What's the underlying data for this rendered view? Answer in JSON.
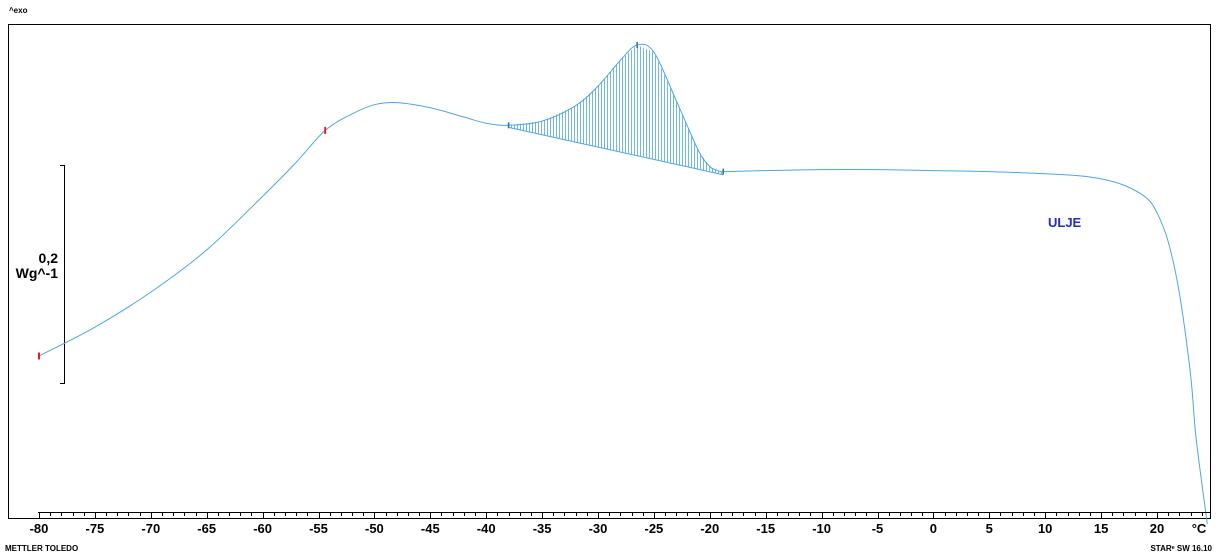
{
  "corner_label": "^exo",
  "footer_left": "METTLER TOLEDO",
  "footer_right": "STARᵉ SW 16.10",
  "colors": {
    "curve": "#4da6e8",
    "hatch": "#4da6e8",
    "label": "#1f2fbf",
    "marker": "#e02020"
  },
  "chart_data": {
    "type": "line",
    "xlabel": "°C",
    "xlim": [
      -80,
      25
    ],
    "x_ticks": [
      -80,
      -75,
      -70,
      -65,
      -60,
      -55,
      -50,
      -45,
      -40,
      -35,
      -30,
      -25,
      -20,
      -15,
      -10,
      -5,
      0,
      5,
      10,
      15,
      20
    ],
    "x_tick_labels": [
      "-80",
      "-75",
      "-70",
      "-65",
      "-60",
      "-55",
      "-50",
      "-45",
      "-40",
      "-35",
      "-30",
      "-25",
      "-20",
      "-15",
      "-10",
      "-5",
      "0",
      "5",
      "10",
      "15",
      "20"
    ],
    "scale_bar": {
      "value": "0,2",
      "unit": "Wg^-1"
    },
    "series": [
      {
        "name": "ULJE",
        "x": [
          -80,
          -75,
          -70,
          -65,
          -60,
          -57,
          -54.4,
          -52,
          -50,
          -48,
          -45,
          -42,
          -40,
          -38,
          -35,
          -32,
          -30,
          -28,
          -26.5,
          -25,
          -23,
          -21,
          -20,
          -19.5,
          -19,
          -18.6,
          -15,
          -10,
          -5,
          0,
          5,
          10,
          13,
          15,
          17,
          19,
          20,
          21,
          22,
          23,
          23.5,
          24.5
        ],
        "y": [
          0.0,
          0.028,
          0.062,
          0.103,
          0.155,
          0.188,
          0.219,
          0.235,
          0.244,
          0.246,
          0.241,
          0.232,
          0.226,
          0.224,
          0.228,
          0.243,
          0.262,
          0.287,
          0.302,
          0.295,
          0.248,
          0.199,
          0.184,
          0.181,
          0.179,
          0.179,
          0.18,
          0.181,
          0.181,
          0.18,
          0.179,
          0.177,
          0.175,
          0.172,
          0.166,
          0.154,
          0.139,
          0.111,
          0.061,
          -0.018,
          -0.08,
          -0.163
        ]
      }
    ],
    "peak": {
      "start": -38,
      "end": -18.8,
      "apex": -26.5,
      "baseline_y": [
        0.222,
        0.176
      ]
    },
    "markers": [
      {
        "x": -80,
        "y": 0.0,
        "color": "red"
      },
      {
        "x": -54.4,
        "y": 0.219,
        "color": "red"
      }
    ]
  }
}
